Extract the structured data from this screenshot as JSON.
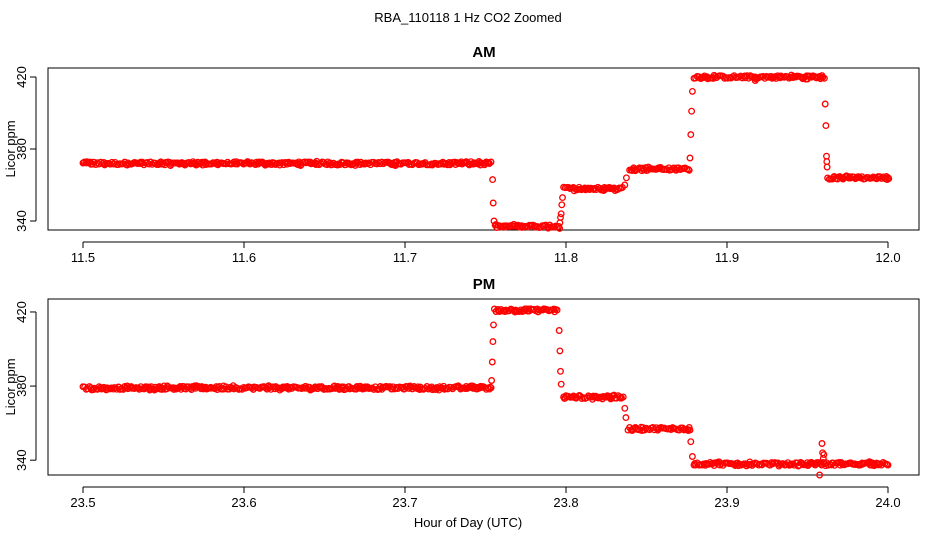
{
  "figure": {
    "title": "RBA_110118  1 Hz CO2 Zoomed",
    "xlabel": "Hour of Day (UTC)",
    "point_color": "#ff0000"
  },
  "chart_data": [
    {
      "type": "scatter",
      "title": "AM",
      "ylabel": "Licor ppm",
      "xlim": [
        11.5,
        12.0
      ],
      "ylim": [
        335,
        425
      ],
      "xticks": [
        11.5,
        11.6,
        11.7,
        11.8,
        11.9,
        12.0
      ],
      "xtick_labels": [
        "11.5",
        "11.6",
        "11.7",
        "11.8",
        "11.9",
        "12.0"
      ],
      "yticks": [
        340,
        380,
        420
      ],
      "ytick_labels": [
        "340",
        "380",
        "420"
      ],
      "grid": false,
      "series": [
        {
          "color": "#ff0000",
          "segments": [
            {
              "x": [
                11.5,
                11.7534
              ],
              "y": 372
            },
            {
              "x": [
                11.756,
                11.7955
              ],
              "y": 337
            },
            {
              "x": [
                11.7985,
                11.835
              ],
              "y": 358
            },
            {
              "x": [
                11.8395,
                11.876
              ],
              "y": 369
            },
            {
              "x": [
                11.8795,
                11.9605
              ],
              "y": 420
            },
            {
              "x": [
                11.9625,
                12.0
              ],
              "y": 364
            }
          ],
          "transitions": [
            {
              "x": 11.7544,
              "y": 363
            },
            {
              "x": 11.7548,
              "y": 350
            },
            {
              "x": 11.7553,
              "y": 340
            },
            {
              "x": 11.7962,
              "y": 339
            },
            {
              "x": 11.7966,
              "y": 342
            },
            {
              "x": 11.797,
              "y": 344
            },
            {
              "x": 11.7974,
              "y": 349
            },
            {
              "x": 11.7978,
              "y": 353
            },
            {
              "x": 11.8365,
              "y": 360
            },
            {
              "x": 11.8375,
              "y": 364
            },
            {
              "x": 11.877,
              "y": 375
            },
            {
              "x": 11.8775,
              "y": 388
            },
            {
              "x": 11.878,
              "y": 401
            },
            {
              "x": 11.8785,
              "y": 412
            },
            {
              "x": 11.9175,
              "y": 418
            },
            {
              "x": 11.961,
              "y": 405
            },
            {
              "x": 11.9614,
              "y": 393
            },
            {
              "x": 11.9618,
              "y": 376
            },
            {
              "x": 11.962,
              "y": 373
            },
            {
              "x": 11.9622,
              "y": 370
            }
          ]
        }
      ]
    },
    {
      "type": "scatter",
      "title": "PM",
      "ylabel": "Licor ppm",
      "xlim": [
        23.5,
        24.0
      ],
      "ylim": [
        332,
        427
      ],
      "xticks": [
        23.5,
        23.6,
        23.7,
        23.8,
        23.9,
        24.0
      ],
      "xtick_labels": [
        "23.5",
        "23.6",
        "23.7",
        "23.8",
        "23.9",
        "24.0"
      ],
      "yticks": [
        340,
        380,
        420
      ],
      "ytick_labels": [
        "340",
        "380",
        "420"
      ],
      "grid": false,
      "series": [
        {
          "color": "#ff0000",
          "segments": [
            {
              "x": [
                23.5,
                23.7535
              ],
              "y": 379
            },
            {
              "x": [
                23.7555,
                23.7945
              ],
              "y": 421
            },
            {
              "x": [
                23.7985,
                23.8355
              ],
              "y": 374
            },
            {
              "x": [
                23.8385,
                23.8765
              ],
              "y": 357
            },
            {
              "x": [
                23.8795,
                24.0
              ],
              "y": 338
            }
          ],
          "transitions": [
            {
              "x": 23.7538,
              "y": 383
            },
            {
              "x": 23.7542,
              "y": 393
            },
            {
              "x": 23.7546,
              "y": 404
            },
            {
              "x": 23.755,
              "y": 413
            },
            {
              "x": 23.7958,
              "y": 410
            },
            {
              "x": 23.7962,
              "y": 399
            },
            {
              "x": 23.7966,
              "y": 388
            },
            {
              "x": 23.797,
              "y": 381
            },
            {
              "x": 23.8365,
              "y": 368
            },
            {
              "x": 23.8372,
              "y": 363
            },
            {
              "x": 23.8775,
              "y": 350
            },
            {
              "x": 23.8785,
              "y": 342
            },
            {
              "x": 23.959,
              "y": 349
            },
            {
              "x": 23.9594,
              "y": 344
            },
            {
              "x": 23.9598,
              "y": 341
            },
            {
              "x": 23.9602,
              "y": 343
            },
            {
              "x": 23.9575,
              "y": 332
            }
          ]
        }
      ]
    }
  ]
}
